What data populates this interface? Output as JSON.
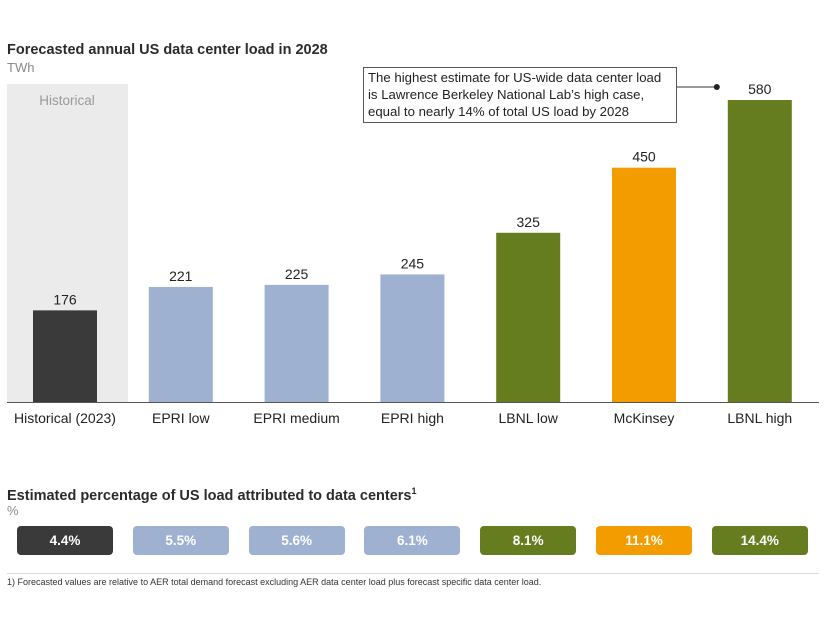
{
  "header": {
    "title": "Forecasted annual US data center load in 2028",
    "unit": "TWh"
  },
  "annotation": {
    "text": "The highest estimate for US-wide data center load is Lawrence Berkeley National Lab’s high case, equal to nearly 14% of total US load by 2028",
    "target": "LBNL high"
  },
  "chart_data": {
    "type": "bar",
    "title": "Forecasted annual US data center load in 2028",
    "xlabel": "",
    "ylabel": "TWh",
    "ylim": [
      0,
      580
    ],
    "grid": false,
    "shaded_region": {
      "label": "Historical",
      "categories": [
        "Historical (2023)"
      ],
      "color": "#ebebeb"
    },
    "categories": [
      "Historical (2023)",
      "EPRI low",
      "EPRI medium",
      "EPRI high",
      "LBNL low",
      "McKinsey",
      "LBNL high"
    ],
    "values": [
      176,
      221,
      225,
      245,
      325,
      450,
      580
    ],
    "data_labels": [
      "176",
      "221",
      "225",
      "245",
      "325",
      "450",
      "580"
    ],
    "colors": [
      "#3a3a3a",
      "#9fb1d1",
      "#9fb1d1",
      "#9fb1d1",
      "#657d1e",
      "#f29c00",
      "#657d1e"
    ]
  },
  "percentages": {
    "title": "Estimated percentage of US load attributed to data centers",
    "footnote_marker": "1",
    "unit": "%",
    "values": [
      "4.4%",
      "5.5%",
      "5.6%",
      "6.1%",
      "8.1%",
      "11.1%",
      "14.4%"
    ],
    "colors": [
      "#3a3a3a",
      "#9fb1d1",
      "#9fb1d1",
      "#9fb1d1",
      "#657d1e",
      "#f29c00",
      "#657d1e"
    ]
  },
  "footnote": "1) Forecasted values are relative to AER total demand forecast excluding AER data center load plus forecast specific data center load."
}
